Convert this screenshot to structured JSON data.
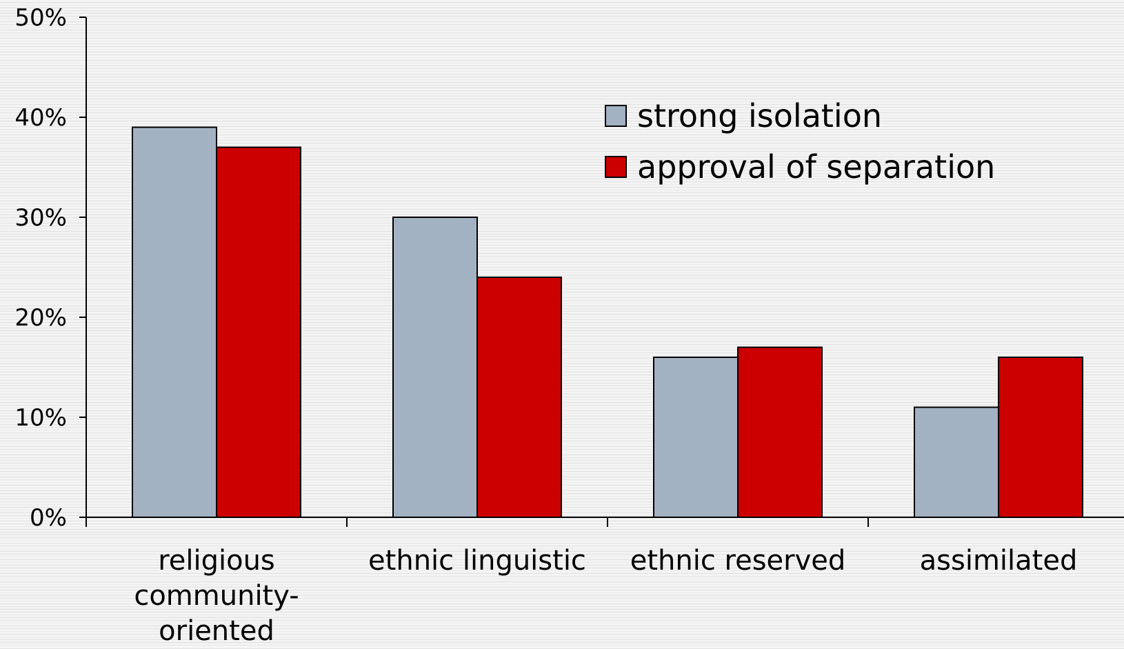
{
  "chart_data": {
    "type": "bar",
    "title": "",
    "xlabel": "",
    "ylabel": "",
    "categories": [
      [
        "religious",
        "community-",
        "oriented"
      ],
      [
        "ethnic linguistic"
      ],
      [
        "ethnic reserved"
      ],
      [
        "assimilated"
      ]
    ],
    "series": [
      {
        "name": "strong isolation",
        "values": [
          39,
          30,
          16,
          11
        ],
        "color": "#a3b2c3"
      },
      {
        "name": "approval of separation",
        "values": [
          37,
          24,
          17,
          16
        ],
        "color": "#cc0000"
      }
    ],
    "ylim": [
      0,
      50
    ],
    "yticks": [
      0,
      10,
      20,
      30,
      40,
      50
    ],
    "ytick_labels": [
      "0%",
      "10%",
      "20%",
      "30%",
      "40%",
      "50%"
    ],
    "unit": "%",
    "grid": false,
    "legend_position": "top-right"
  }
}
